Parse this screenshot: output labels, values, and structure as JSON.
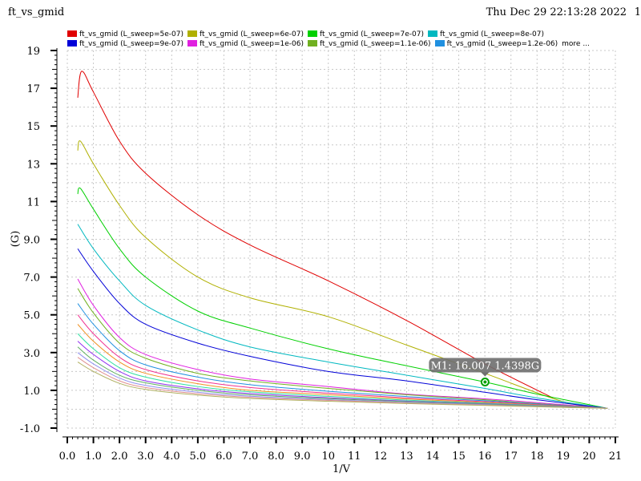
{
  "header": {
    "title": "ft_vs_gmid",
    "date": "Thu Dec 29 22:13:28 2022",
    "page": "1"
  },
  "legend_more": "more ...",
  "chart_data": {
    "type": "line",
    "xlabel": "1/V",
    "ylabel": "(G)",
    "xlim": [
      0,
      21
    ],
    "ylim": [
      -1,
      19
    ],
    "xticks": [
      "0.0",
      "1.0",
      "2.0",
      "3.0",
      "4.0",
      "5.0",
      "6.0",
      "7.0",
      "8.0",
      "9.0",
      "10",
      "11",
      "12",
      "13",
      "14",
      "15",
      "16",
      "17",
      "18",
      "19",
      "20",
      "21"
    ],
    "yticks": [
      "-1.0",
      "1.0",
      "3.0",
      "5.0",
      "7.0",
      "9.0",
      "11",
      "13",
      "15",
      "17",
      "19"
    ],
    "grid": true,
    "legend_position": "top",
    "series": [
      {
        "name": "ft_vs_gmid (L_sweep=5e-07)",
        "color": "#e00000",
        "legend": true,
        "x": [
          0.4,
          0.55,
          1,
          2,
          3,
          5,
          7,
          10,
          13,
          16,
          18.6
        ],
        "y": [
          16.5,
          17.9,
          16.8,
          14.2,
          12.5,
          10.3,
          8.7,
          6.8,
          4.7,
          2.4,
          0.6
        ]
      },
      {
        "name": "ft_vs_gmid (L_sweep=6e-07)",
        "color": "#b0b000",
        "legend": true,
        "x": [
          0.4,
          0.5,
          1,
          2,
          3,
          5,
          7,
          10,
          13,
          16,
          19,
          20.7
        ],
        "y": [
          13.7,
          14.2,
          13.0,
          10.8,
          9.1,
          7.0,
          5.9,
          4.9,
          3.4,
          1.9,
          0.4,
          0.05
        ]
      },
      {
        "name": "ft_vs_gmid (L_sweep=7e-07)",
        "color": "#00d000",
        "legend": true,
        "x": [
          0.4,
          0.5,
          1,
          2,
          3,
          5,
          7,
          10,
          13,
          16,
          18,
          20.7
        ],
        "y": [
          11.4,
          11.7,
          10.6,
          8.5,
          7.0,
          5.2,
          4.3,
          3.2,
          2.3,
          1.44,
          0.8,
          0.05
        ]
      },
      {
        "name": "ft_vs_gmid (L_sweep=8e-07)",
        "color": "#00b8c0",
        "legend": true,
        "x": [
          0.4,
          1,
          2,
          3,
          5,
          7,
          10,
          13,
          16,
          18,
          20.7
        ],
        "y": [
          9.8,
          8.5,
          6.8,
          5.5,
          4.2,
          3.3,
          2.5,
          1.8,
          1.1,
          0.6,
          0.05
        ]
      },
      {
        "name": "ft_vs_gmid (L_sweep=9e-07)",
        "color": "#0000d8",
        "legend": true,
        "x": [
          0.4,
          1,
          2,
          3,
          5,
          7,
          10,
          13,
          16,
          18,
          20.7
        ],
        "y": [
          8.5,
          7.3,
          5.6,
          4.5,
          3.5,
          2.8,
          2.0,
          1.5,
          0.9,
          0.5,
          0.05
        ]
      },
      {
        "name": "ft_vs_gmid (L_sweep=1e-06)",
        "color": "#e020e0",
        "legend": true,
        "x": [
          0.4,
          1,
          2,
          3,
          5,
          7,
          10,
          13,
          16,
          18,
          20.7
        ],
        "y": [
          6.9,
          5.5,
          3.8,
          2.9,
          2.1,
          1.6,
          1.2,
          0.8,
          0.55,
          0.35,
          0.05
        ]
      },
      {
        "name": "ft_vs_gmid (L_sweep=1.1e-06)",
        "color": "#70b020",
        "legend": true,
        "x": [
          0.4,
          1,
          2,
          3,
          5,
          7,
          10,
          13,
          16,
          18,
          20.7
        ],
        "y": [
          6.4,
          5.1,
          3.5,
          2.7,
          1.9,
          1.5,
          1.1,
          0.77,
          0.5,
          0.3,
          0.05
        ]
      },
      {
        "name": "ft_vs_gmid (L_sweep=1.2e-06)",
        "color": "#2090e0",
        "legend": true,
        "x": [
          0.4,
          1,
          2,
          3,
          5,
          7,
          10,
          13,
          16,
          18,
          20.7
        ],
        "y": [
          5.6,
          4.5,
          3.1,
          2.35,
          1.7,
          1.3,
          0.95,
          0.67,
          0.45,
          0.28,
          0.05
        ]
      },
      {
        "name": "",
        "color": "#f03090",
        "legend": false,
        "x": [
          0.4,
          1,
          2,
          3,
          5,
          7,
          10,
          13,
          16,
          18,
          20.7
        ],
        "y": [
          5.0,
          4.0,
          2.75,
          2.1,
          1.5,
          1.15,
          0.85,
          0.6,
          0.4,
          0.25,
          0.05
        ]
      },
      {
        "name": "",
        "color": "#f09020",
        "legend": false,
        "x": [
          0.4,
          1,
          2,
          3,
          5,
          7,
          10,
          13,
          16,
          18,
          20.7
        ],
        "y": [
          4.5,
          3.6,
          2.5,
          1.9,
          1.35,
          1.0,
          0.77,
          0.54,
          0.36,
          0.22,
          0.05
        ]
      },
      {
        "name": "",
        "color": "#30e0a0",
        "legend": false,
        "x": [
          0.4,
          1,
          2,
          3,
          5,
          7,
          10,
          13,
          16,
          18,
          20.7
        ],
        "y": [
          4.0,
          3.2,
          2.2,
          1.7,
          1.2,
          0.92,
          0.68,
          0.48,
          0.32,
          0.2,
          0.05
        ]
      },
      {
        "name": "",
        "color": "#9030f0",
        "legend": false,
        "x": [
          0.4,
          1,
          2,
          3,
          5,
          7,
          10,
          13,
          16,
          18,
          20.7
        ],
        "y": [
          3.6,
          2.9,
          2.0,
          1.5,
          1.08,
          0.83,
          0.61,
          0.43,
          0.29,
          0.18,
          0.05
        ]
      },
      {
        "name": "",
        "color": "#60b060",
        "legend": false,
        "x": [
          0.4,
          1,
          2,
          3,
          5,
          7,
          10,
          13,
          16,
          18,
          20.7
        ],
        "y": [
          3.3,
          2.6,
          1.8,
          1.4,
          1.0,
          0.76,
          0.56,
          0.4,
          0.27,
          0.17,
          0.05
        ]
      },
      {
        "name": "",
        "color": "#9090f0",
        "legend": false,
        "x": [
          0.4,
          1,
          2,
          3,
          5,
          7,
          10,
          13,
          16,
          18,
          20.7
        ],
        "y": [
          3.0,
          2.4,
          1.65,
          1.26,
          0.9,
          0.69,
          0.51,
          0.36,
          0.24,
          0.15,
          0.05
        ]
      },
      {
        "name": "",
        "color": "#e09090",
        "legend": false,
        "x": [
          0.4,
          1,
          2,
          3,
          5,
          7,
          10,
          13,
          16,
          18,
          20.7
        ],
        "y": [
          2.75,
          2.2,
          1.5,
          1.15,
          0.82,
          0.63,
          0.47,
          0.33,
          0.22,
          0.14,
          0.05
        ]
      },
      {
        "name": "",
        "color": "#b0b060",
        "legend": false,
        "x": [
          0.4,
          1,
          2,
          3,
          5,
          7,
          10,
          13,
          16,
          18,
          20.7
        ],
        "y": [
          2.5,
          2.0,
          1.37,
          1.05,
          0.75,
          0.57,
          0.42,
          0.3,
          0.2,
          0.13,
          0.05
        ]
      }
    ],
    "marker": {
      "label": "M1: 16.007 1.4398G",
      "x": 16.007,
      "y": 1.4398,
      "color": "#00a000"
    }
  }
}
